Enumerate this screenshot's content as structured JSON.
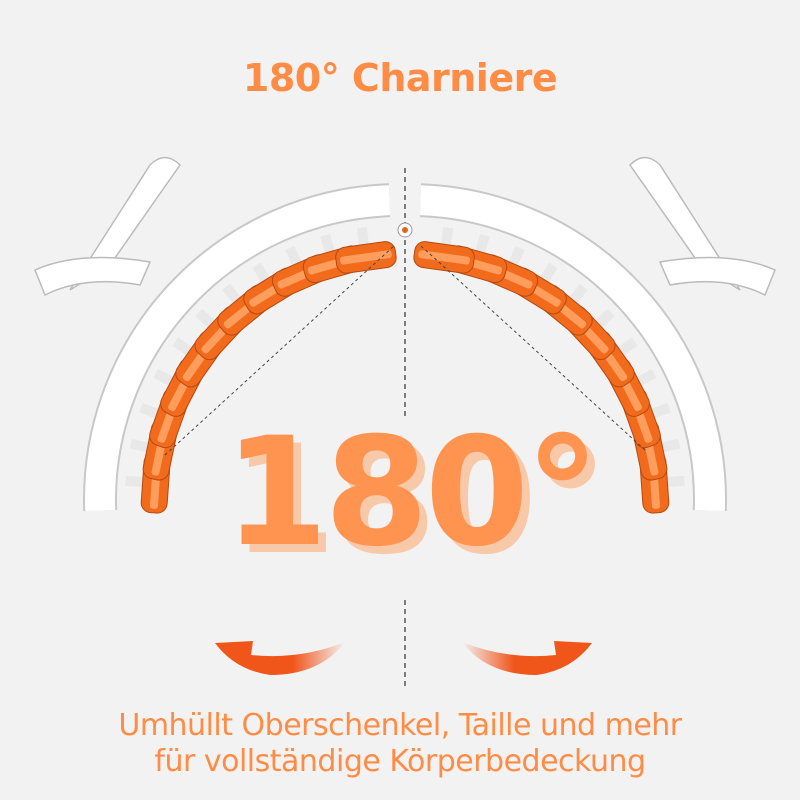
{
  "title": "180° Charniere",
  "angle_label": "180°",
  "caption": {
    "line1": "Umhüllt Oberschenkel, Taille und mehr",
    "line2": "für vollständige Körperbedeckung"
  },
  "colors": {
    "background": "#f3f2f2",
    "accent": "#ff9450",
    "roller": "#f26a1b",
    "arrow": "#f0561a",
    "frame": "#ffffff"
  },
  "icons": [
    "hinge-icon",
    "rotate-left-arrow-icon",
    "rotate-right-arrow-icon"
  ]
}
